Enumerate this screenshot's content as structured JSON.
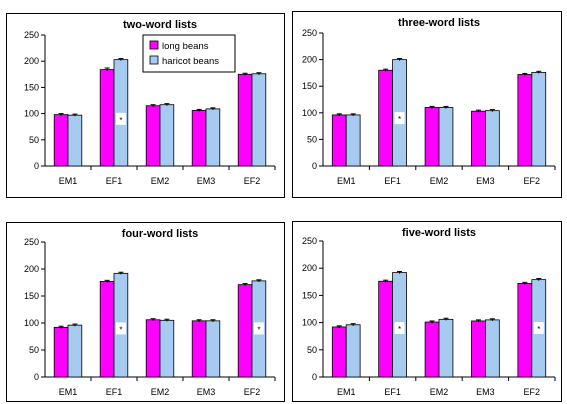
{
  "colors": {
    "long_beans": "#ff00ff",
    "haricot_beans": "#a6caf0",
    "error_bar": "#000000"
  },
  "legend": {
    "long_beans_label": "long beans",
    "haricot_beans_label": "haricot beans"
  },
  "chart_data": [
    {
      "type": "bar",
      "title": "two-word lists",
      "categories": [
        "EM1",
        "EF1",
        "EM2",
        "EM3",
        "EF2"
      ],
      "ylim": [
        0,
        250
      ],
      "yticks": [
        0,
        50,
        100,
        150,
        200,
        250
      ],
      "legend": true,
      "series": [
        {
          "name": "long beans",
          "values": [
            98,
            184,
            115,
            106,
            175
          ],
          "errors": [
            2,
            3,
            2,
            2,
            2
          ]
        },
        {
          "name": "haricot beans",
          "values": [
            97,
            203,
            117,
            109,
            176
          ],
          "errors": [
            2,
            2,
            2,
            2,
            2
          ]
        }
      ],
      "annotations": [
        {
          "text": "*",
          "category": "EF1"
        }
      ]
    },
    {
      "type": "bar",
      "title": "three-word lists",
      "categories": [
        "EM1",
        "EF1",
        "EM2",
        "EM3",
        "EF2"
      ],
      "ylim": [
        0,
        250
      ],
      "yticks": [
        0,
        50,
        100,
        150,
        200,
        250
      ],
      "legend": false,
      "series": [
        {
          "name": "long beans",
          "values": [
            96,
            180,
            110,
            103,
            172
          ],
          "errors": [
            2,
            2,
            2,
            2,
            2
          ]
        },
        {
          "name": "haricot beans",
          "values": [
            96,
            200,
            110,
            104,
            176
          ],
          "errors": [
            2,
            2,
            2,
            2,
            2
          ]
        }
      ],
      "annotations": [
        {
          "text": "*",
          "category": "EF1"
        }
      ]
    },
    {
      "type": "bar",
      "title": "four-word lists",
      "categories": [
        "EM1",
        "EF1",
        "EM2",
        "EM3",
        "EF2"
      ],
      "ylim": [
        0,
        250
      ],
      "yticks": [
        0,
        50,
        100,
        150,
        200,
        250
      ],
      "legend": false,
      "series": [
        {
          "name": "long beans",
          "values": [
            92,
            177,
            106,
            104,
            171
          ],
          "errors": [
            2,
            2,
            2,
            2,
            2
          ]
        },
        {
          "name": "haricot beans",
          "values": [
            96,
            192,
            105,
            104,
            178
          ],
          "errors": [
            2,
            2,
            2,
            2,
            2
          ]
        }
      ],
      "annotations": [
        {
          "text": "*",
          "category": "EF1"
        },
        {
          "text": "*",
          "category": "EF2"
        }
      ]
    },
    {
      "type": "bar",
      "title": "five-word lists",
      "categories": [
        "EM1",
        "EF1",
        "EM2",
        "EM3",
        "EF2"
      ],
      "ylim": [
        0,
        250
      ],
      "yticks": [
        0,
        50,
        100,
        150,
        200,
        250
      ],
      "legend": false,
      "series": [
        {
          "name": "long beans",
          "values": [
            92,
            176,
            101,
            103,
            172
          ],
          "errors": [
            2,
            2,
            2,
            2,
            2
          ]
        },
        {
          "name": "haricot beans",
          "values": [
            96,
            192,
            106,
            105,
            179
          ],
          "errors": [
            2,
            2,
            2,
            2,
            2
          ]
        }
      ],
      "annotations": [
        {
          "text": "*",
          "category": "EF1"
        },
        {
          "text": "*",
          "category": "EF2"
        }
      ]
    }
  ]
}
